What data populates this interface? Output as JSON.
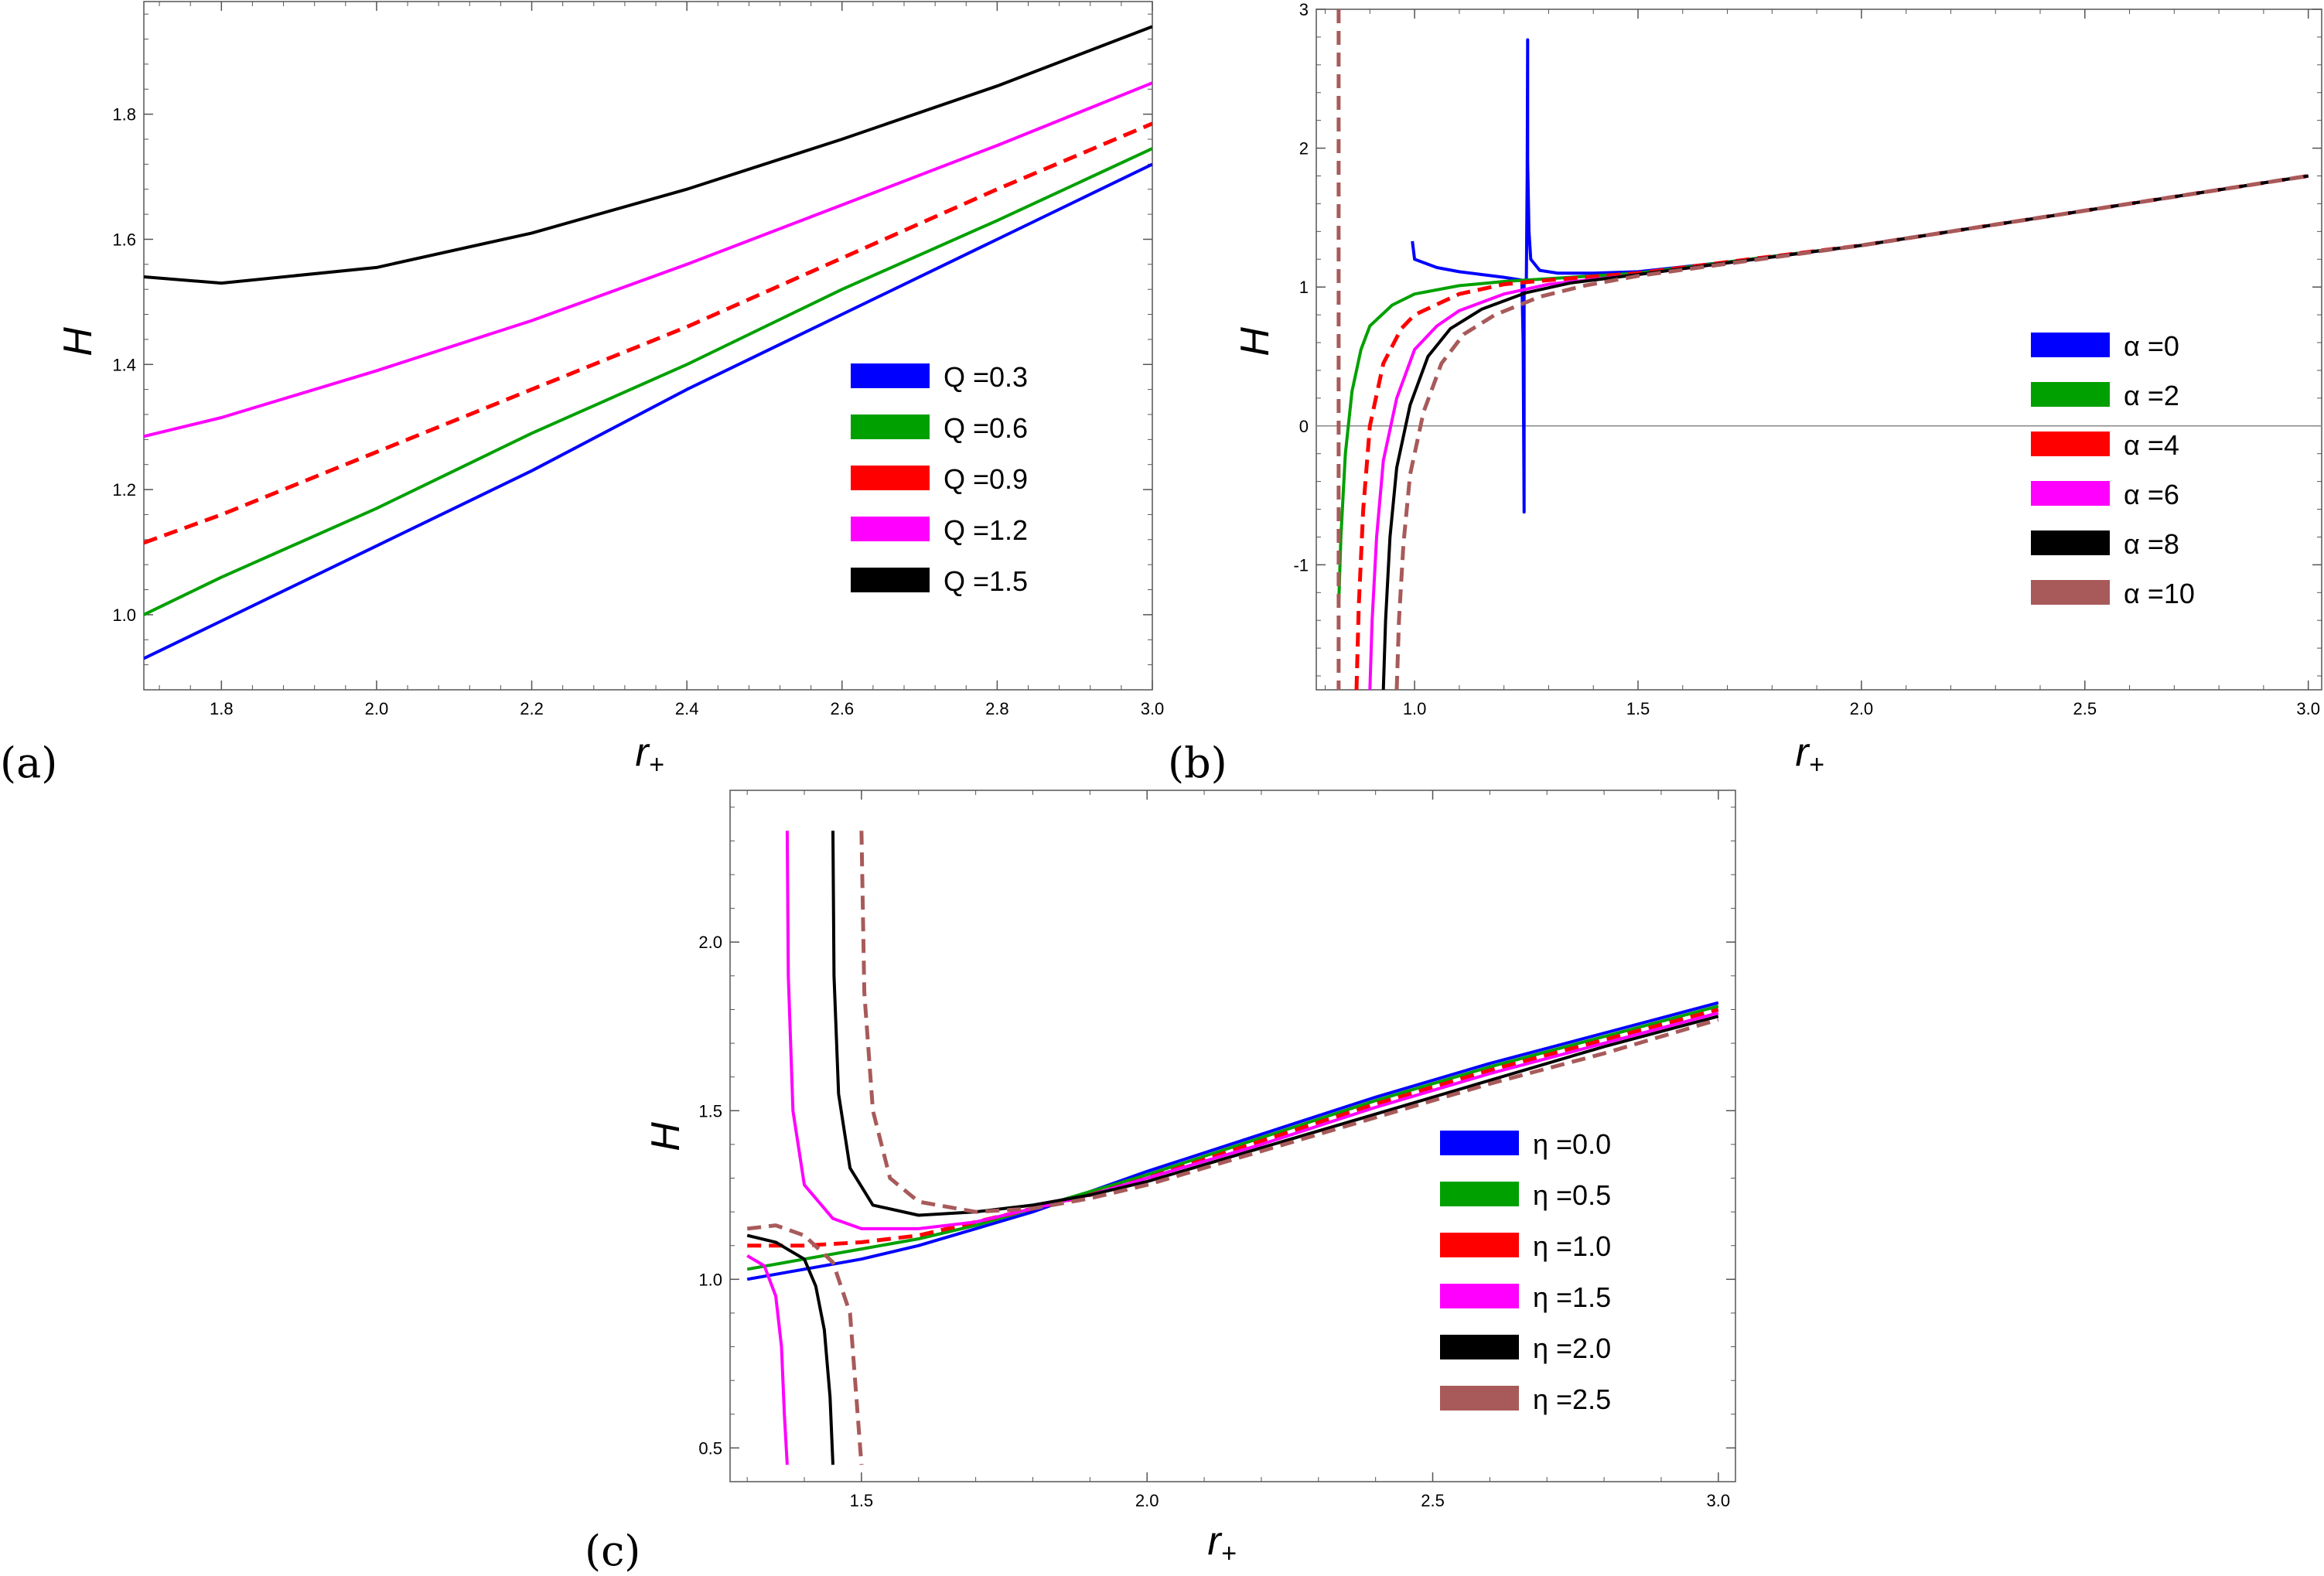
{
  "chart_data": [
    {
      "type": "line",
      "panel_label": "(a)",
      "xlabel_base": "r",
      "xlabel_sub": "+",
      "ylabel": "H",
      "xlim": [
        1.7,
        3.0
      ],
      "ylim": [
        0.88,
        1.98
      ],
      "xticks": [
        "1.8",
        "2.0",
        "2.2",
        "2.4",
        "2.6",
        "2.8",
        "3.0"
      ],
      "yticks": [
        "1.0",
        "1.2",
        "1.4",
        "1.6",
        "1.8"
      ],
      "legend_prefix": "Q",
      "legend_position": "right",
      "series": [
        {
          "name": "Q =0.3",
          "param": "0.3",
          "color": "#0000ff",
          "dashed": false,
          "x": [
            1.7,
            1.8,
            2.0,
            2.2,
            2.4,
            2.6,
            2.8,
            3.0
          ],
          "y": [
            0.93,
            0.99,
            1.11,
            1.23,
            1.36,
            1.48,
            1.6,
            1.72
          ]
        },
        {
          "name": "Q =0.6",
          "param": "0.6",
          "color": "#00a000",
          "dashed": false,
          "x": [
            1.7,
            1.8,
            2.0,
            2.2,
            2.4,
            2.6,
            2.8,
            3.0
          ],
          "y": [
            1.0,
            1.06,
            1.17,
            1.29,
            1.4,
            1.52,
            1.63,
            1.745
          ]
        },
        {
          "name": "Q =0.9",
          "param": "0.9",
          "color": "#ff0000",
          "dashed": true,
          "x": [
            1.7,
            1.8,
            2.0,
            2.2,
            2.4,
            2.6,
            2.8,
            3.0
          ],
          "y": [
            1.115,
            1.16,
            1.26,
            1.36,
            1.46,
            1.57,
            1.68,
            1.785
          ]
        },
        {
          "name": "Q =1.2",
          "param": "1.2",
          "color": "#ff00ff",
          "dashed": false,
          "x": [
            1.7,
            1.8,
            2.0,
            2.2,
            2.4,
            2.6,
            2.8,
            3.0
          ],
          "y": [
            1.285,
            1.315,
            1.39,
            1.47,
            1.56,
            1.655,
            1.75,
            1.85
          ]
        },
        {
          "name": "Q =1.5",
          "param": "1.5",
          "color": "#000000",
          "dashed": false,
          "x": [
            1.7,
            1.8,
            2.0,
            2.2,
            2.4,
            2.6,
            2.8,
            3.0
          ],
          "y": [
            1.54,
            1.53,
            1.555,
            1.61,
            1.68,
            1.76,
            1.845,
            1.94
          ]
        }
      ]
    },
    {
      "type": "line",
      "panel_label": "(b)",
      "xlabel_base": "r",
      "xlabel_sub": "+",
      "ylabel": "H",
      "xlim": [
        0.78,
        3.03
      ],
      "ylim": [
        -1.9,
        3.0
      ],
      "xticks": [
        "1.0",
        "1.5",
        "2.0",
        "2.5",
        "3.0"
      ],
      "yticks": [
        "-1",
        "0",
        "1",
        "2",
        "3"
      ],
      "zero_line": true,
      "legend_prefix": "α",
      "legend_position": "right",
      "series": [
        {
          "name": "α =0",
          "param": "0",
          "color": "#0000ff",
          "dashed": false,
          "x": [
            0.995,
            1.0,
            1.05,
            1.1,
            1.15,
            1.2,
            1.24,
            1.243,
            1.245,
            1.245,
            1.245,
            1.25,
            1.252,
            1.253,
            1.253,
            1.256,
            1.26,
            1.28,
            1.32,
            1.4,
            1.5,
            1.7,
            2.0,
            2.5,
            3.0
          ],
          "y": [
            1.33,
            1.2,
            1.14,
            1.11,
            1.09,
            1.07,
            1.05,
            0.6,
            -0.6,
            -0.62,
            1.05,
            1.04,
            1.8,
            2.78,
            1.9,
            1.4,
            1.2,
            1.12,
            1.1,
            1.1,
            1.11,
            1.18,
            1.3,
            1.55,
            1.8
          ]
        },
        {
          "name": "α =2",
          "param": "2",
          "color": "#00a000",
          "dashed": false,
          "x": [
            0.83,
            0.835,
            0.845,
            0.86,
            0.88,
            0.9,
            0.95,
            1.0,
            1.1,
            1.2,
            1.3,
            1.5,
            2.0,
            2.5,
            3.0
          ],
          "y": [
            -1.3,
            -0.8,
            -0.2,
            0.25,
            0.55,
            0.72,
            0.87,
            0.95,
            1.01,
            1.04,
            1.06,
            1.1,
            1.3,
            1.55,
            1.8
          ]
        },
        {
          "name": "α =4",
          "param": "4",
          "color": "#ff0000",
          "dashed": true,
          "x": [
            0.87,
            0.875,
            0.885,
            0.9,
            0.93,
            0.97,
            1.0,
            1.1,
            1.2,
            1.3,
            1.5,
            2.0,
            2.5,
            3.0
          ],
          "y": [
            -1.9,
            -1.3,
            -0.6,
            0.0,
            0.45,
            0.7,
            0.8,
            0.95,
            1.02,
            1.05,
            1.1,
            1.3,
            1.55,
            1.8
          ]
        },
        {
          "name": "α =6",
          "param": "6",
          "color": "#ff00ff",
          "dashed": false,
          "x": [
            0.9,
            0.905,
            0.915,
            0.93,
            0.96,
            1.0,
            1.05,
            1.1,
            1.2,
            1.3,
            1.5,
            2.0,
            2.5,
            3.0
          ],
          "y": [
            -1.9,
            -1.4,
            -0.8,
            -0.25,
            0.2,
            0.55,
            0.72,
            0.83,
            0.95,
            1.02,
            1.09,
            1.3,
            1.55,
            1.8
          ]
        },
        {
          "name": "α =8",
          "param": "8",
          "color": "#000000",
          "dashed": false,
          "x": [
            0.93,
            0.935,
            0.945,
            0.96,
            0.99,
            1.03,
            1.08,
            1.15,
            1.25,
            1.35,
            1.5,
            2.0,
            2.5,
            3.0
          ],
          "y": [
            -1.9,
            -1.4,
            -0.8,
            -0.3,
            0.15,
            0.5,
            0.7,
            0.84,
            0.96,
            1.03,
            1.09,
            1.3,
            1.55,
            1.8
          ]
        },
        {
          "name": "α =10",
          "param": "10",
          "color": "#a85a5a",
          "dashed": true,
          "x": [
            0.96,
            0.965,
            0.975,
            0.99,
            1.02,
            1.06,
            1.11,
            1.18,
            1.28,
            1.38,
            1.5,
            2.0,
            2.5,
            3.0
          ],
          "y": [
            -1.9,
            -1.4,
            -0.85,
            -0.35,
            0.1,
            0.45,
            0.66,
            0.8,
            0.93,
            1.01,
            1.08,
            1.3,
            1.55,
            1.8
          ],
          "asymptote_x": 0.83
        }
      ]
    },
    {
      "type": "line",
      "panel_label": "(c)",
      "xlabel_base": "r",
      "xlabel_sub": "+",
      "ylabel": "H",
      "xlim": [
        1.27,
        3.03
      ],
      "ylim": [
        0.4,
        2.45
      ],
      "xticks": [
        "1.5",
        "2.0",
        "2.5",
        "3.0"
      ],
      "yticks": [
        "0.5",
        "1.0",
        "1.5",
        "2.0"
      ],
      "legend_prefix": "η",
      "legend_position": "right",
      "series": [
        {
          "name": "η =0.0",
          "param": "0.0",
          "color": "#0000ff",
          "dashed": false,
          "x": [
            1.3,
            1.4,
            1.5,
            1.6,
            1.7,
            1.8,
            1.9,
            2.0,
            2.2,
            2.4,
            2.6,
            2.8,
            3.0
          ],
          "y": [
            1.0,
            1.03,
            1.06,
            1.1,
            1.15,
            1.2,
            1.26,
            1.32,
            1.43,
            1.54,
            1.64,
            1.73,
            1.82
          ]
        },
        {
          "name": "η =0.5",
          "param": "0.5",
          "color": "#00a000",
          "dashed": false,
          "x": [
            1.3,
            1.4,
            1.5,
            1.6,
            1.7,
            1.8,
            1.9,
            2.0,
            2.2,
            2.4,
            2.6,
            2.8,
            3.0
          ],
          "y": [
            1.03,
            1.06,
            1.09,
            1.12,
            1.16,
            1.21,
            1.26,
            1.31,
            1.42,
            1.53,
            1.63,
            1.72,
            1.81
          ]
        },
        {
          "name": "η =1.0",
          "param": "1.0",
          "color": "#ff0000",
          "dashed": true,
          "x": [
            1.3,
            1.4,
            1.5,
            1.6,
            1.7,
            1.8,
            1.9,
            2.0,
            2.2,
            2.4,
            2.6,
            2.8,
            3.0
          ],
          "y": [
            1.1,
            1.1,
            1.11,
            1.13,
            1.17,
            1.21,
            1.25,
            1.3,
            1.41,
            1.52,
            1.62,
            1.71,
            1.8
          ]
        },
        {
          "name": "η =1.5",
          "param": "1.5",
          "color": "#ff00ff",
          "dashed": false,
          "segments": [
            {
              "x": [
                1.3,
                1.33,
                1.35,
                1.36,
                1.365,
                1.37
              ],
              "y": [
                1.07,
                1.04,
                0.95,
                0.8,
                0.6,
                0.45
              ]
            },
            {
              "x": [
                1.37,
                1.372,
                1.38,
                1.4,
                1.45,
                1.5,
                1.6,
                1.7,
                1.8,
                1.9,
                2.0,
                2.2,
                2.4,
                2.6,
                2.8,
                3.0
              ],
              "y": [
                2.33,
                1.9,
                1.5,
                1.28,
                1.18,
                1.15,
                1.15,
                1.17,
                1.21,
                1.25,
                1.3,
                1.4,
                1.51,
                1.61,
                1.7,
                1.79
              ]
            }
          ]
        },
        {
          "name": "η =2.0",
          "param": "2.0",
          "color": "#000000",
          "dashed": false,
          "segments": [
            {
              "x": [
                1.3,
                1.35,
                1.4,
                1.42,
                1.435,
                1.445,
                1.45
              ],
              "y": [
                1.13,
                1.11,
                1.06,
                0.98,
                0.85,
                0.65,
                0.45
              ]
            },
            {
              "x": [
                1.45,
                1.452,
                1.46,
                1.48,
                1.52,
                1.6,
                1.7,
                1.8,
                1.9,
                2.0,
                2.2,
                2.4,
                2.6,
                2.8,
                3.0
              ],
              "y": [
                2.33,
                1.9,
                1.55,
                1.33,
                1.22,
                1.19,
                1.2,
                1.22,
                1.25,
                1.29,
                1.39,
                1.49,
                1.59,
                1.69,
                1.78
              ]
            }
          ]
        },
        {
          "name": "η =2.5",
          "param": "2.5",
          "color": "#a85a5a",
          "dashed": true,
          "segments": [
            {
              "x": [
                1.3,
                1.35,
                1.4,
                1.45,
                1.48,
                1.5
              ],
              "y": [
                1.15,
                1.16,
                1.13,
                1.05,
                0.9,
                0.45
              ]
            },
            {
              "x": [
                1.5,
                1.505,
                1.52,
                1.55,
                1.6,
                1.7,
                1.8,
                1.9,
                2.0,
                2.2,
                2.4,
                2.6,
                2.8,
                3.0
              ],
              "y": [
                2.33,
                1.85,
                1.5,
                1.3,
                1.23,
                1.2,
                1.21,
                1.24,
                1.28,
                1.38,
                1.48,
                1.58,
                1.67,
                1.77
              ]
            }
          ]
        }
      ]
    }
  ]
}
